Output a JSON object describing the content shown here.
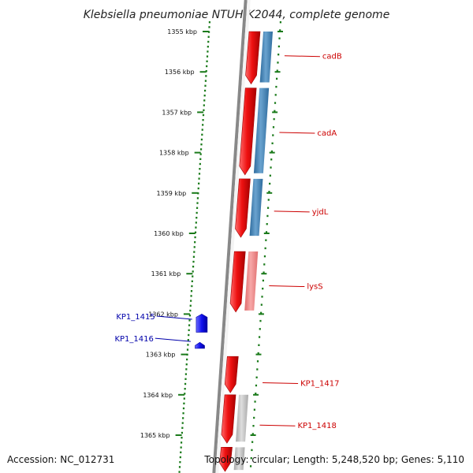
{
  "title": "Klebsiella pneumoniae NTUH-K2044, complete genome",
  "footer": {
    "accession": "Accession: NC_012731",
    "info": "Topology: circular; Length: 5,248,520 bp; Genes: 5,110"
  },
  "colors": {
    "forward_gene": "#ee1111",
    "reverse_gene": "#1111ee",
    "cds_blue": "#3f7fb0",
    "cds_pink": "#f08a8a",
    "cds_grey": "#bbbbbb",
    "backbone": "#888888",
    "ticks": "#1a7a1a",
    "forward_label": "#cc0000",
    "reverse_label": "#0000aa"
  },
  "ticks": [
    {
      "kbp": 1355,
      "label": "1355 kbp"
    },
    {
      "kbp": 1356,
      "label": "1356 kbp"
    },
    {
      "kbp": 1357,
      "label": "1357 kbp"
    },
    {
      "kbp": 1358,
      "label": "1358 kbp"
    },
    {
      "kbp": 1359,
      "label": "1359 kbp"
    },
    {
      "kbp": 1360,
      "label": "1360 kbp"
    },
    {
      "kbp": 1361,
      "label": "1361 kbp"
    },
    {
      "kbp": 1362,
      "label": "1362 kbp"
    },
    {
      "kbp": 1363,
      "label": "1363 kbp"
    },
    {
      "kbp": 1364,
      "label": "1364 kbp"
    },
    {
      "kbp": 1365,
      "label": "1365 kbp"
    }
  ],
  "genes": [
    {
      "name": "cadB",
      "strand": "+",
      "start_kbp": 1355.0,
      "end_kbp": 1356.3,
      "cds": "blue",
      "label_kbp": 1355.6
    },
    {
      "name": "cadA",
      "strand": "+",
      "start_kbp": 1356.4,
      "end_kbp": 1358.55,
      "cds": "blue",
      "label_kbp": 1357.5
    },
    {
      "name": "yjdL",
      "strand": "+",
      "start_kbp": 1358.65,
      "end_kbp": 1360.1,
      "cds": "blue",
      "label_kbp": 1359.45
    },
    {
      "name": "lysS",
      "strand": "+",
      "start_kbp": 1360.45,
      "end_kbp": 1361.95,
      "cds": "pink",
      "label_kbp": 1361.3
    },
    {
      "name": "KP1_1415",
      "strand": "-",
      "start_kbp": 1362.0,
      "end_kbp": 1362.45,
      "cds": "",
      "label_kbp": 1362.05
    },
    {
      "name": "KP1_1416",
      "strand": "-",
      "start_kbp": 1362.7,
      "end_kbp": 1362.85,
      "cds": "",
      "label_kbp": 1362.6
    },
    {
      "name": "KP1_1417",
      "strand": "+",
      "start_kbp": 1363.05,
      "end_kbp": 1363.95,
      "cds": "",
      "label_kbp": 1363.7
    },
    {
      "name": "KP1_1418",
      "strand": "+",
      "start_kbp": 1364.0,
      "end_kbp": 1365.2,
      "cds": "grey",
      "label_kbp": 1364.75
    },
    {
      "name": "",
      "strand": "+",
      "start_kbp": 1365.3,
      "end_kbp": 1365.9,
      "cds": "grey",
      "label_kbp": 1365.6
    }
  ]
}
